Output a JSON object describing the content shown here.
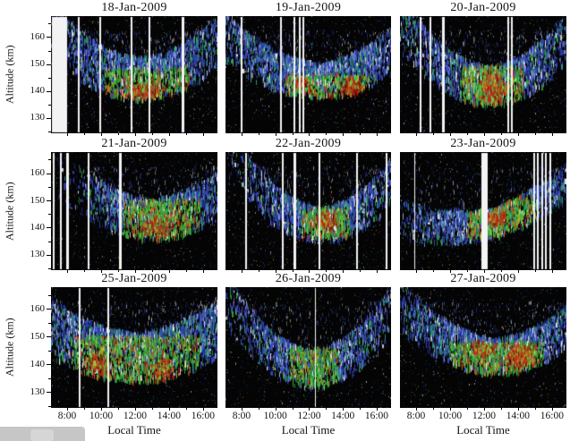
{
  "figure": {
    "watermark": "gray-overlay-block"
  },
  "chart_data": {
    "type": "heatmap",
    "layout": "3x3 grid of time-height radar echo intensity panels on black background",
    "colormap": "echo power: blue (weak) -> green -> yellow -> red (strong); white vertical stripes are data gaps",
    "xlabel": "Local Time",
    "ylabel": "Altitude (km)",
    "x_tick_labels": [
      "8:00",
      "10:00",
      "12:00",
      "14:00",
      "16:00"
    ],
    "x_ticks_hours": [
      8,
      10,
      12,
      14,
      16
    ],
    "xlim_hours": [
      7.05,
      16.85
    ],
    "y_tick_labels": [
      "130",
      "140",
      "150",
      "160"
    ],
    "y_ticks_km": [
      130,
      140,
      150,
      160
    ],
    "y_minor_ticks_km": [
      125,
      135,
      145,
      155,
      165
    ],
    "ylim_km": [
      124.3,
      167.8
    ],
    "panels": [
      {
        "title": "18-Jan-2009",
        "row": 0,
        "col": 0,
        "summary": "Echo layer ~133-152 km, strongest (green/red) 10:30-15:00 around 138-146 km; wide data gap at panel start",
        "gaps": [
          {
            "f": 0.008,
            "w": 17
          },
          {
            "f": 0.16,
            "w": 2
          },
          {
            "f": 0.29,
            "w": 2
          },
          {
            "f": 0.48,
            "w": 2
          },
          {
            "f": 0.585,
            "w": 2
          },
          {
            "f": 0.785,
            "w": 3
          }
        ],
        "echo": {
          "tc": 12.3,
          "sigma": 3.2,
          "base": 136,
          "curv": 0.55,
          "bandH": 16,
          "flare": 0.8,
          "coreT": [
            10.2,
            15.2
          ],
          "coreA": [
            135,
            148
          ],
          "coreAmp": 0.85,
          "d0": 18,
          "blobs": [
            {
              "t": [
                11.2,
                13.8
              ],
              "a": [
                137,
                144
              ],
              "n": 210
            }
          ]
        }
      },
      {
        "title": "19-Jan-2009",
        "row": 0,
        "col": 1,
        "summary": "Broad U-shaped layer, green band ~137-146 km 10:30-15:30 with red patches near 14:30; blue arcs rise to ~160 km at edges",
        "gaps": [
          {
            "f": 0.09,
            "w": 2
          },
          {
            "f": 0.33,
            "w": 2
          },
          {
            "f": 0.41,
            "w": 2
          },
          {
            "f": 0.445,
            "w": 2
          },
          {
            "f": 0.465,
            "w": 2
          }
        ],
        "echo": {
          "tc": 12.5,
          "sigma": 3.6,
          "base": 137,
          "curv": 0.45,
          "bandH": 13,
          "flare": 0.9,
          "coreT": [
            10.5,
            15.6
          ],
          "coreA": [
            137,
            146
          ],
          "coreAmp": 0.8,
          "d0": 18,
          "blobs": [
            {
              "t": [
                13.8,
                15.3
              ],
              "a": [
                138,
                146
              ],
              "n": 170
            },
            {
              "t": [
                11.0,
                12.2
              ],
              "a": [
                141,
                146
              ],
              "n": 90
            }
          ]
        }
      },
      {
        "title": "20-Jan-2009",
        "row": 0,
        "col": 2,
        "summary": "V-shaped echo region, intense red/green core 11:30-13:30 at ~135-149 km",
        "gaps": [
          {
            "f": 0.12,
            "w": 2
          },
          {
            "f": 0.18,
            "w": 2
          },
          {
            "f": 0.25,
            "w": 3
          },
          {
            "f": 0.645,
            "w": 2
          },
          {
            "f": 0.665,
            "w": 2
          }
        ],
        "echo": {
          "tc": 12.3,
          "sigma": 2.9,
          "base": 134,
          "curv": 0.75,
          "bandH": 15,
          "flare": 0.8,
          "coreT": [
            10.6,
            14.3
          ],
          "coreA": [
            134,
            149
          ],
          "coreAmp": 0.9,
          "d0": 19,
          "blobs": [
            {
              "t": [
                11.7,
                13.3
              ],
              "a": [
                135,
                149
              ],
              "n": 260
            }
          ]
        }
      },
      {
        "title": "21-Jan-2009",
        "row": 1,
        "col": 0,
        "summary": "Sparse before ~10:30 (several gaps), strong green/red echoes 11:30-16:00 at ~134-150 km",
        "gaps": [
          {
            "f": 0.01,
            "w": 2
          },
          {
            "f": 0.055,
            "w": 2
          },
          {
            "f": 0.09,
            "w": 3
          },
          {
            "f": 0.22,
            "w": 2
          },
          {
            "f": 0.41,
            "w": 3
          }
        ],
        "echo": {
          "tc": 13.0,
          "sigma": 3.1,
          "base": 135,
          "curv": 0.5,
          "bandH": 15,
          "flare": 0.8,
          "rampLeft": 10.5,
          "coreT": [
            11.3,
            15.8
          ],
          "coreA": [
            134,
            150
          ],
          "coreAmp": 0.8,
          "d0": 18,
          "blobs": [
            {
              "t": [
                12.0,
                14.5
              ],
              "a": [
                136,
                146
              ],
              "n": 160
            }
          ]
        }
      },
      {
        "title": "22-Jan-2009",
        "row": 1,
        "col": 1,
        "summary": "Narrow V-shaped region, red core ~12:00-13:30 at 139-147 km, descending blue arcs on both sides",
        "gaps": [
          {
            "f": 0.12,
            "w": 2
          },
          {
            "f": 0.34,
            "w": 2
          },
          {
            "f": 0.41,
            "w": 3
          },
          {
            "f": 0.56,
            "w": 2
          },
          {
            "f": 0.79,
            "w": 2
          },
          {
            "f": 0.97,
            "w": 2
          }
        ],
        "echo": {
          "tc": 12.7,
          "sigma": 2.5,
          "base": 134,
          "curv": 0.8,
          "bandH": 13,
          "flare": 0.9,
          "coreT": [
            11.5,
            14.4
          ],
          "coreA": [
            136,
            147
          ],
          "coreAmp": 0.9,
          "d0": 18,
          "blobs": [
            {
              "t": [
                12.2,
                13.6
              ],
              "a": [
                139,
                147
              ],
              "n": 160
            }
          ]
        }
      },
      {
        "title": "23-Jan-2009",
        "row": 1,
        "col": 2,
        "summary": "Diagonal band rising from ~138 km at 11:00 to ~150 km at 15:00 with red core; wide gap ~12:00 and gap cluster ~15:00-15:30",
        "gaps": [
          {
            "f": 0.086,
            "w": 1
          },
          {
            "f": 0.49,
            "w": 7
          },
          {
            "f": 0.8,
            "w": 2
          },
          {
            "f": 0.824,
            "w": 2
          },
          {
            "f": 0.848,
            "w": 2
          },
          {
            "f": 0.872,
            "w": 2
          },
          {
            "f": 0.896,
            "w": 2
          }
        ],
        "echo": {
          "tc": 12.6,
          "sigma": 2.7,
          "base": 136,
          "curv": 0.3,
          "slope": 1.8,
          "bandH": 11,
          "flare": 0.7,
          "coreT": [
            11.0,
            15.2
          ],
          "coreA": [
            136,
            151
          ],
          "coreAmp": 0.9,
          "d0": 18,
          "blobs": [
            {
              "t": [
                12.0,
                13.2
              ],
              "a": [
                141,
                147
              ],
              "n": 160
            }
          ]
        }
      },
      {
        "title": "25-Jan-2009",
        "row": 2,
        "col": 0,
        "summary": "Dense broad echoes across whole day 8:00-16:30, green/red 132-152 km",
        "gaps": [
          {
            "f": 0.165,
            "w": 2
          },
          {
            "f": 0.34,
            "w": 2
          }
        ],
        "echo": {
          "tc": 12.0,
          "sigma": 4.4,
          "base": 133,
          "curv": 0.38,
          "bandH": 18,
          "flare": 0.6,
          "coreT": [
            8.2,
            15.8
          ],
          "coreA": [
            132,
            150
          ],
          "coreAmp": 0.8,
          "d0": 21,
          "blobs": [
            {
              "t": [
                9.0,
                10.5
              ],
              "a": [
                135,
                146
              ],
              "n": 150
            },
            {
              "t": [
                12.8,
                14.3
              ],
              "a": [
                133,
                144
              ],
              "n": 150
            }
          ]
        }
      },
      {
        "title": "26-Jan-2009",
        "row": 2,
        "col": 1,
        "summary": "V-shaped moderate echoes, green/orange core 11:00-13:30 at ~131-146 km",
        "gaps": [
          {
            "f": 0.54,
            "w": 1
          }
        ],
        "echo": {
          "tc": 12.2,
          "sigma": 2.7,
          "base": 131,
          "curv": 0.85,
          "bandH": 14,
          "flare": 0.9,
          "coreT": [
            10.8,
            13.7
          ],
          "coreA": [
            131,
            146
          ],
          "coreAmp": 0.6,
          "d0": 17,
          "blobs": []
        }
      },
      {
        "title": "27-Jan-2009",
        "row": 2,
        "col": 2,
        "summary": "Broad layer with large red blob 13:30-15:00 at 139-148 km and green band 10:00-15:30",
        "gaps": [],
        "echo": {
          "tc": 12.7,
          "sigma": 3.4,
          "base": 136,
          "curv": 0.5,
          "bandH": 13,
          "flare": 0.8,
          "coreT": [
            10.0,
            15.5
          ],
          "coreA": [
            136,
            148
          ],
          "coreAmp": 0.85,
          "d0": 19,
          "blobs": [
            {
              "t": [
                13.2,
                15.1
              ],
              "a": [
                139,
                148
              ],
              "n": 380
            },
            {
              "t": [
                11.2,
                12.6
              ],
              "a": [
                143,
                149
              ],
              "n": 130
            }
          ]
        }
      }
    ]
  }
}
